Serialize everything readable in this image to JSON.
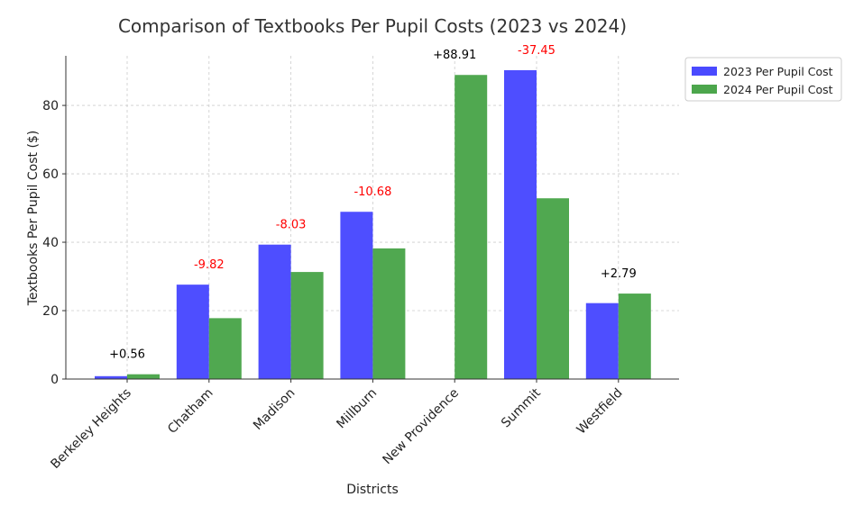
{
  "chart_data": {
    "type": "bar",
    "title": "Comparison of Textbooks Per Pupil Costs (2023 vs 2024)",
    "xlabel": "Districts",
    "ylabel": "Textbooks Per Pupil Cost ($)",
    "ylim": [
      0,
      94.5
    ],
    "yticks": [
      0,
      20,
      40,
      60,
      80
    ],
    "grid": true,
    "legend_position": "top-right, outside",
    "categories": [
      "Berkeley Heights",
      "Chatham",
      "Madison",
      "Millburn",
      "New Providence",
      "Summit",
      "Westfield"
    ],
    "series": [
      {
        "name": "2023 Per Pupil Cost",
        "color": "#4a4aff",
        "values": [
          0.84,
          27.6,
          39.3,
          48.9,
          0,
          90.3,
          22.2
        ]
      },
      {
        "name": "2024 Per Pupil Cost",
        "color": "#4ca64c",
        "values": [
          1.4,
          17.8,
          31.3,
          38.2,
          88.91,
          52.85,
          24.99
        ]
      }
    ],
    "annotations": [
      "+0.56",
      "-9.82",
      "-8.03",
      "-10.68",
      "+88.91",
      "-37.45",
      "+2.79"
    ],
    "annotation_colors": {
      "positive": "#000000",
      "negative": "#ff0000"
    }
  }
}
